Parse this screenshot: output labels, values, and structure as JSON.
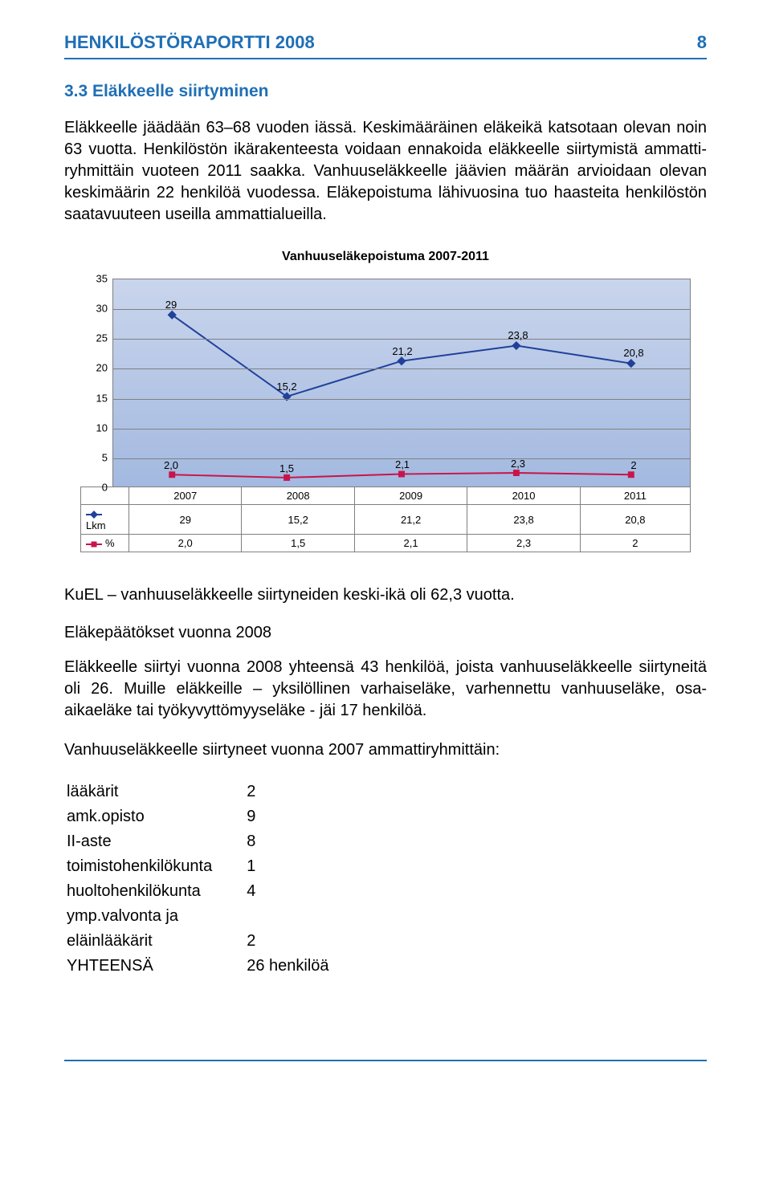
{
  "header": {
    "title": "HENKILÖSTÖRAPORTTI 2008",
    "page_number": "8"
  },
  "section": {
    "heading": "3.3  Eläkkeelle siirtyminen",
    "paragraph1": "Eläkkeelle jäädään 63–68 vuoden iässä. Keskimääräinen eläkeikä katsotaan olevan noin 63 vuotta. Henkilöstön ikärakenteesta voidaan ennakoida eläkkeelle siirtymistä ammatti-ryhmittäin vuoteen 2011 saakka. Vanhuuseläkkeelle jäävien määrän arvioidaan olevan keskimäärin 22 henkilöä vuodessa. Eläkepoistuma lähivuosina tuo haasteita henkilöstön saatavuuteen useilla ammattialueilla."
  },
  "chart": {
    "title": "Vanhuuseläkepoistuma 2007-2011",
    "type": "line",
    "years": [
      "2007",
      "2008",
      "2009",
      "2010",
      "2011"
    ],
    "ylim": [
      0,
      35
    ],
    "ytick_step": 5,
    "yticks": [
      "0",
      "5",
      "10",
      "15",
      "20",
      "25",
      "30",
      "35"
    ],
    "background_gradient_top": "#c9d5ec",
    "background_gradient_bottom": "#a3b9e0",
    "grid_color": "#808080",
    "series": {
      "lkm": {
        "label": "Lkm",
        "color": "#20409a",
        "marker": "diamond",
        "values": [
          29,
          15.2,
          21.2,
          23.8,
          20.8
        ],
        "display": [
          "29",
          "15,2",
          "21,2",
          "23,8",
          "20,8"
        ]
      },
      "pct": {
        "label": "%",
        "color": "#c8144b",
        "marker": "square",
        "values": [
          2.0,
          1.5,
          2.1,
          2.3,
          2
        ],
        "display": [
          "2,0",
          "1,5",
          "2,1",
          "2,3",
          "2"
        ]
      }
    }
  },
  "after_chart": {
    "line1": "KuEL – vanhuuseläkkeelle siirtyneiden keski-ikä oli 62,3 vuotta.",
    "sub_heading": "Eläkepäätökset vuonna 2008",
    "paragraph2": "Eläkkeelle siirtyi vuonna 2008 yhteensä 43 henkilöä, joista vanhuuseläkkeelle siirtyneitä oli 26. Muille eläkkeille – yksilöllinen varhaiseläke, varhennettu vanhuuseläke, osa-aikaeläke tai työkyvyttömyyseläke - jäi 17 henkilöä.",
    "line2": "Vanhuuseläkkeelle siirtyneet vuonna 2007 ammattiryhmittäin:"
  },
  "breakdown": {
    "rows": [
      {
        "label": "lääkärit",
        "value": "2"
      },
      {
        "label": "amk.opisto",
        "value": "9"
      },
      {
        "label": "II-aste",
        "value": "8"
      },
      {
        "label": "toimistohenkilökunta",
        "value": "1"
      },
      {
        "label": "huoltohenkilökunta",
        "value": "4"
      },
      {
        "label": "ymp.valvonta ja",
        "value": ""
      },
      {
        "label": "eläinlääkärit",
        "value": "2"
      },
      {
        "label": "YHTEENSÄ",
        "value": "26 henkilöä"
      }
    ]
  },
  "colors": {
    "brand": "#1f6fb5"
  }
}
